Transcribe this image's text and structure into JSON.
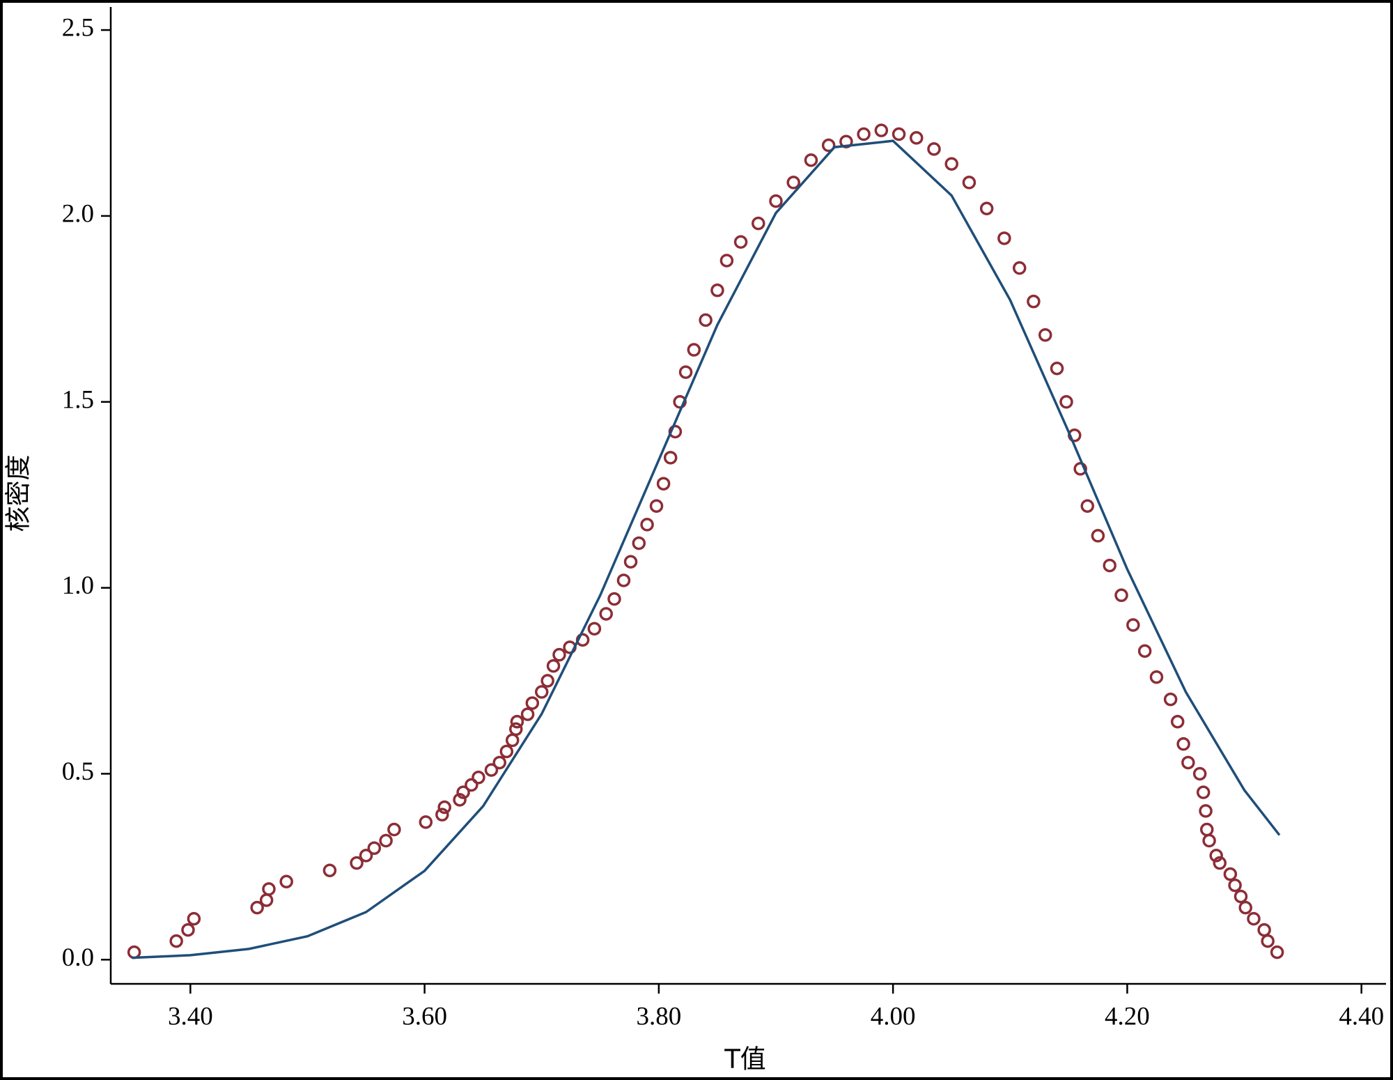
{
  "chart_data": {
    "type": "scatter",
    "x_label": "T值",
    "y_label": "核密度",
    "xlim": [
      3.332,
      4.421
    ],
    "ylim": [
      -0.065,
      2.562
    ],
    "xticks": [
      {
        "value": 3.4,
        "label": "3.40"
      },
      {
        "value": 3.6,
        "label": "3.60"
      },
      {
        "value": 3.8,
        "label": "3.80"
      },
      {
        "value": 4.0,
        "label": "4.00"
      },
      {
        "value": 4.2,
        "label": "4.20"
      },
      {
        "value": 4.4,
        "label": "4.40"
      }
    ],
    "yticks": [
      {
        "value": 0,
        "label": "0.0"
      },
      0.5,
      {
        "value": 1,
        "label": "1.0"
      },
      1.5,
      {
        "value": 2,
        "label": "2.0"
      },
      2.5
    ],
    "series": [
      {
        "type": "scatter",
        "color": "#8c2d36",
        "x": [
          3.352,
          3.388,
          3.398,
          3.403,
          3.457,
          3.465,
          3.467,
          3.482,
          3.519,
          3.542,
          3.55,
          3.557,
          3.567,
          3.574,
          3.601,
          3.615,
          3.617,
          3.63,
          3.633,
          3.64,
          3.646,
          3.657,
          3.664,
          3.67,
          3.675,
          3.678,
          3.679,
          3.688,
          3.692,
          3.7,
          3.705,
          3.71,
          3.715,
          3.724,
          3.735,
          3.745,
          3.755,
          3.762,
          3.77,
          3.776,
          3.783,
          3.79,
          3.798,
          3.804,
          3.81,
          3.814,
          3.818,
          3.823,
          3.83,
          3.84,
          3.85,
          3.858,
          3.87,
          3.885,
          3.9,
          3.915,
          3.93,
          3.945,
          3.96,
          3.975,
          3.99,
          4.005,
          4.02,
          4.035,
          4.05,
          4.065,
          4.08,
          4.095,
          4.108,
          4.12,
          4.13,
          4.14,
          4.148,
          4.155,
          4.16,
          4.166,
          4.175,
          4.185,
          4.195,
          4.205,
          4.215,
          4.225,
          4.237,
          4.243,
          4.248,
          4.252,
          4.262,
          4.265,
          4.267,
          4.268,
          4.27,
          4.276,
          4.279,
          4.288,
          4.292,
          4.297,
          4.301,
          4.308,
          4.317,
          4.32,
          4.328
        ],
        "values": [
          0.02,
          0.05,
          0.08,
          0.11,
          0.14,
          0.16,
          0.19,
          0.21,
          0.24,
          0.26,
          0.28,
          0.3,
          0.32,
          0.35,
          0.37,
          0.39,
          0.41,
          0.43,
          0.45,
          0.47,
          0.49,
          0.51,
          0.53,
          0.56,
          0.59,
          0.62,
          0.64,
          0.66,
          0.69,
          0.72,
          0.75,
          0.79,
          0.82,
          0.84,
          0.86,
          0.89,
          0.93,
          0.97,
          1.02,
          1.07,
          1.12,
          1.17,
          1.22,
          1.28,
          1.35,
          1.42,
          1.5,
          1.58,
          1.64,
          1.72,
          1.8,
          1.88,
          1.93,
          1.98,
          2.04,
          2.09,
          2.15,
          2.19,
          2.2,
          2.22,
          2.23,
          2.22,
          2.21,
          2.18,
          2.14,
          2.09,
          2.02,
          1.94,
          1.86,
          1.77,
          1.68,
          1.59,
          1.5,
          1.41,
          1.32,
          1.22,
          1.14,
          1.06,
          0.98,
          0.9,
          0.83,
          0.76,
          0.7,
          0.64,
          0.58,
          0.53,
          0.5,
          0.45,
          0.4,
          0.35,
          0.32,
          0.28,
          0.26,
          0.23,
          0.2,
          0.17,
          0.14,
          0.11,
          0.08,
          0.05,
          0.02
        ]
      },
      {
        "type": "line",
        "color": "#1f4e79",
        "x": [
          3.35,
          3.4,
          3.45,
          3.5,
          3.55,
          3.6,
          3.65,
          3.7,
          3.75,
          3.8,
          3.85,
          3.9,
          3.95,
          4.0,
          4.05,
          4.1,
          4.15,
          4.2,
          4.25,
          4.3,
          4.33
        ],
        "values": [
          0.005,
          0.012,
          0.029,
          0.063,
          0.128,
          0.239,
          0.413,
          0.661,
          0.98,
          1.344,
          1.707,
          2.008,
          2.185,
          2.202,
          2.055,
          1.774,
          1.419,
          1.05,
          0.72,
          0.456,
          0.335
        ]
      }
    ]
  }
}
